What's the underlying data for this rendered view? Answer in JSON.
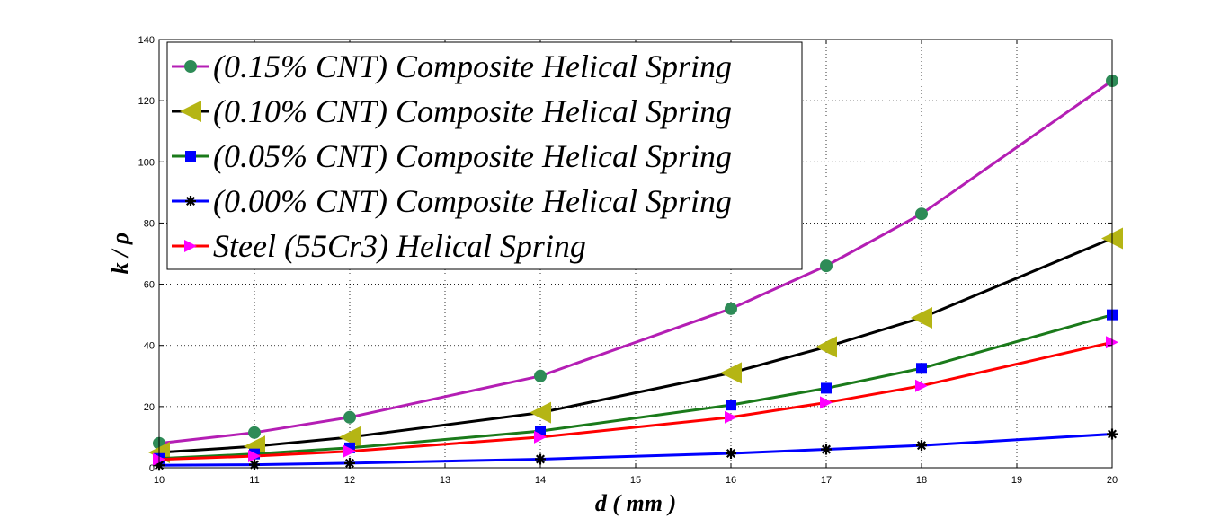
{
  "chart_data": {
    "type": "line",
    "xlabel": "d ( mm )",
    "ylabel": "k / ρ",
    "xlim": [
      10,
      20
    ],
    "ylim": [
      0,
      140
    ],
    "x_ticks": [
      "10",
      "11",
      "12",
      "13",
      "14",
      "15",
      "16",
      "17",
      "18",
      "19",
      "20"
    ],
    "y_ticks": [
      "0",
      "20",
      "40",
      "60",
      "80",
      "100",
      "120",
      "140"
    ],
    "grid": true,
    "legend_position": "top-left",
    "x": [
      10,
      11,
      12,
      14,
      16,
      17,
      18,
      20
    ],
    "series": [
      {
        "name": "(0.15% CNT) Composite Helical Spring",
        "color": "#b41eb4",
        "marker": "circle",
        "marker_color": "#2e8b57",
        "values": [
          8,
          11.5,
          16.5,
          30,
          52,
          66,
          83,
          126.5
        ]
      },
      {
        "name": "(0.10% CNT) Composite Helical Spring",
        "color": "#000000",
        "marker": "triangle-left",
        "marker_color": "#b5b514",
        "values": [
          5,
          7,
          10,
          18,
          31,
          39.5,
          49,
          75
        ]
      },
      {
        "name": "(0.05% CNT) Composite Helical Spring",
        "color": "#1a7a1a",
        "marker": "square",
        "marker_color": "#0000ff",
        "values": [
          3,
          4.5,
          6.5,
          12,
          20.5,
          26,
          32.5,
          50
        ]
      },
      {
        "name": "(0.00% CNT) Composite Helical Spring",
        "color": "#0000ff",
        "marker": "star",
        "marker_color": "#000000",
        "values": [
          0.8,
          1,
          1.5,
          2.8,
          4.7,
          6,
          7.3,
          11
        ]
      },
      {
        "name": "Steel (55Cr3) Helical Spring",
        "color": "#ff0000",
        "marker": "triangle-right",
        "marker_color": "#ff00ff",
        "values": [
          2.7,
          3.8,
          5.4,
          10,
          16.5,
          21.3,
          26.8,
          41
        ]
      }
    ]
  }
}
